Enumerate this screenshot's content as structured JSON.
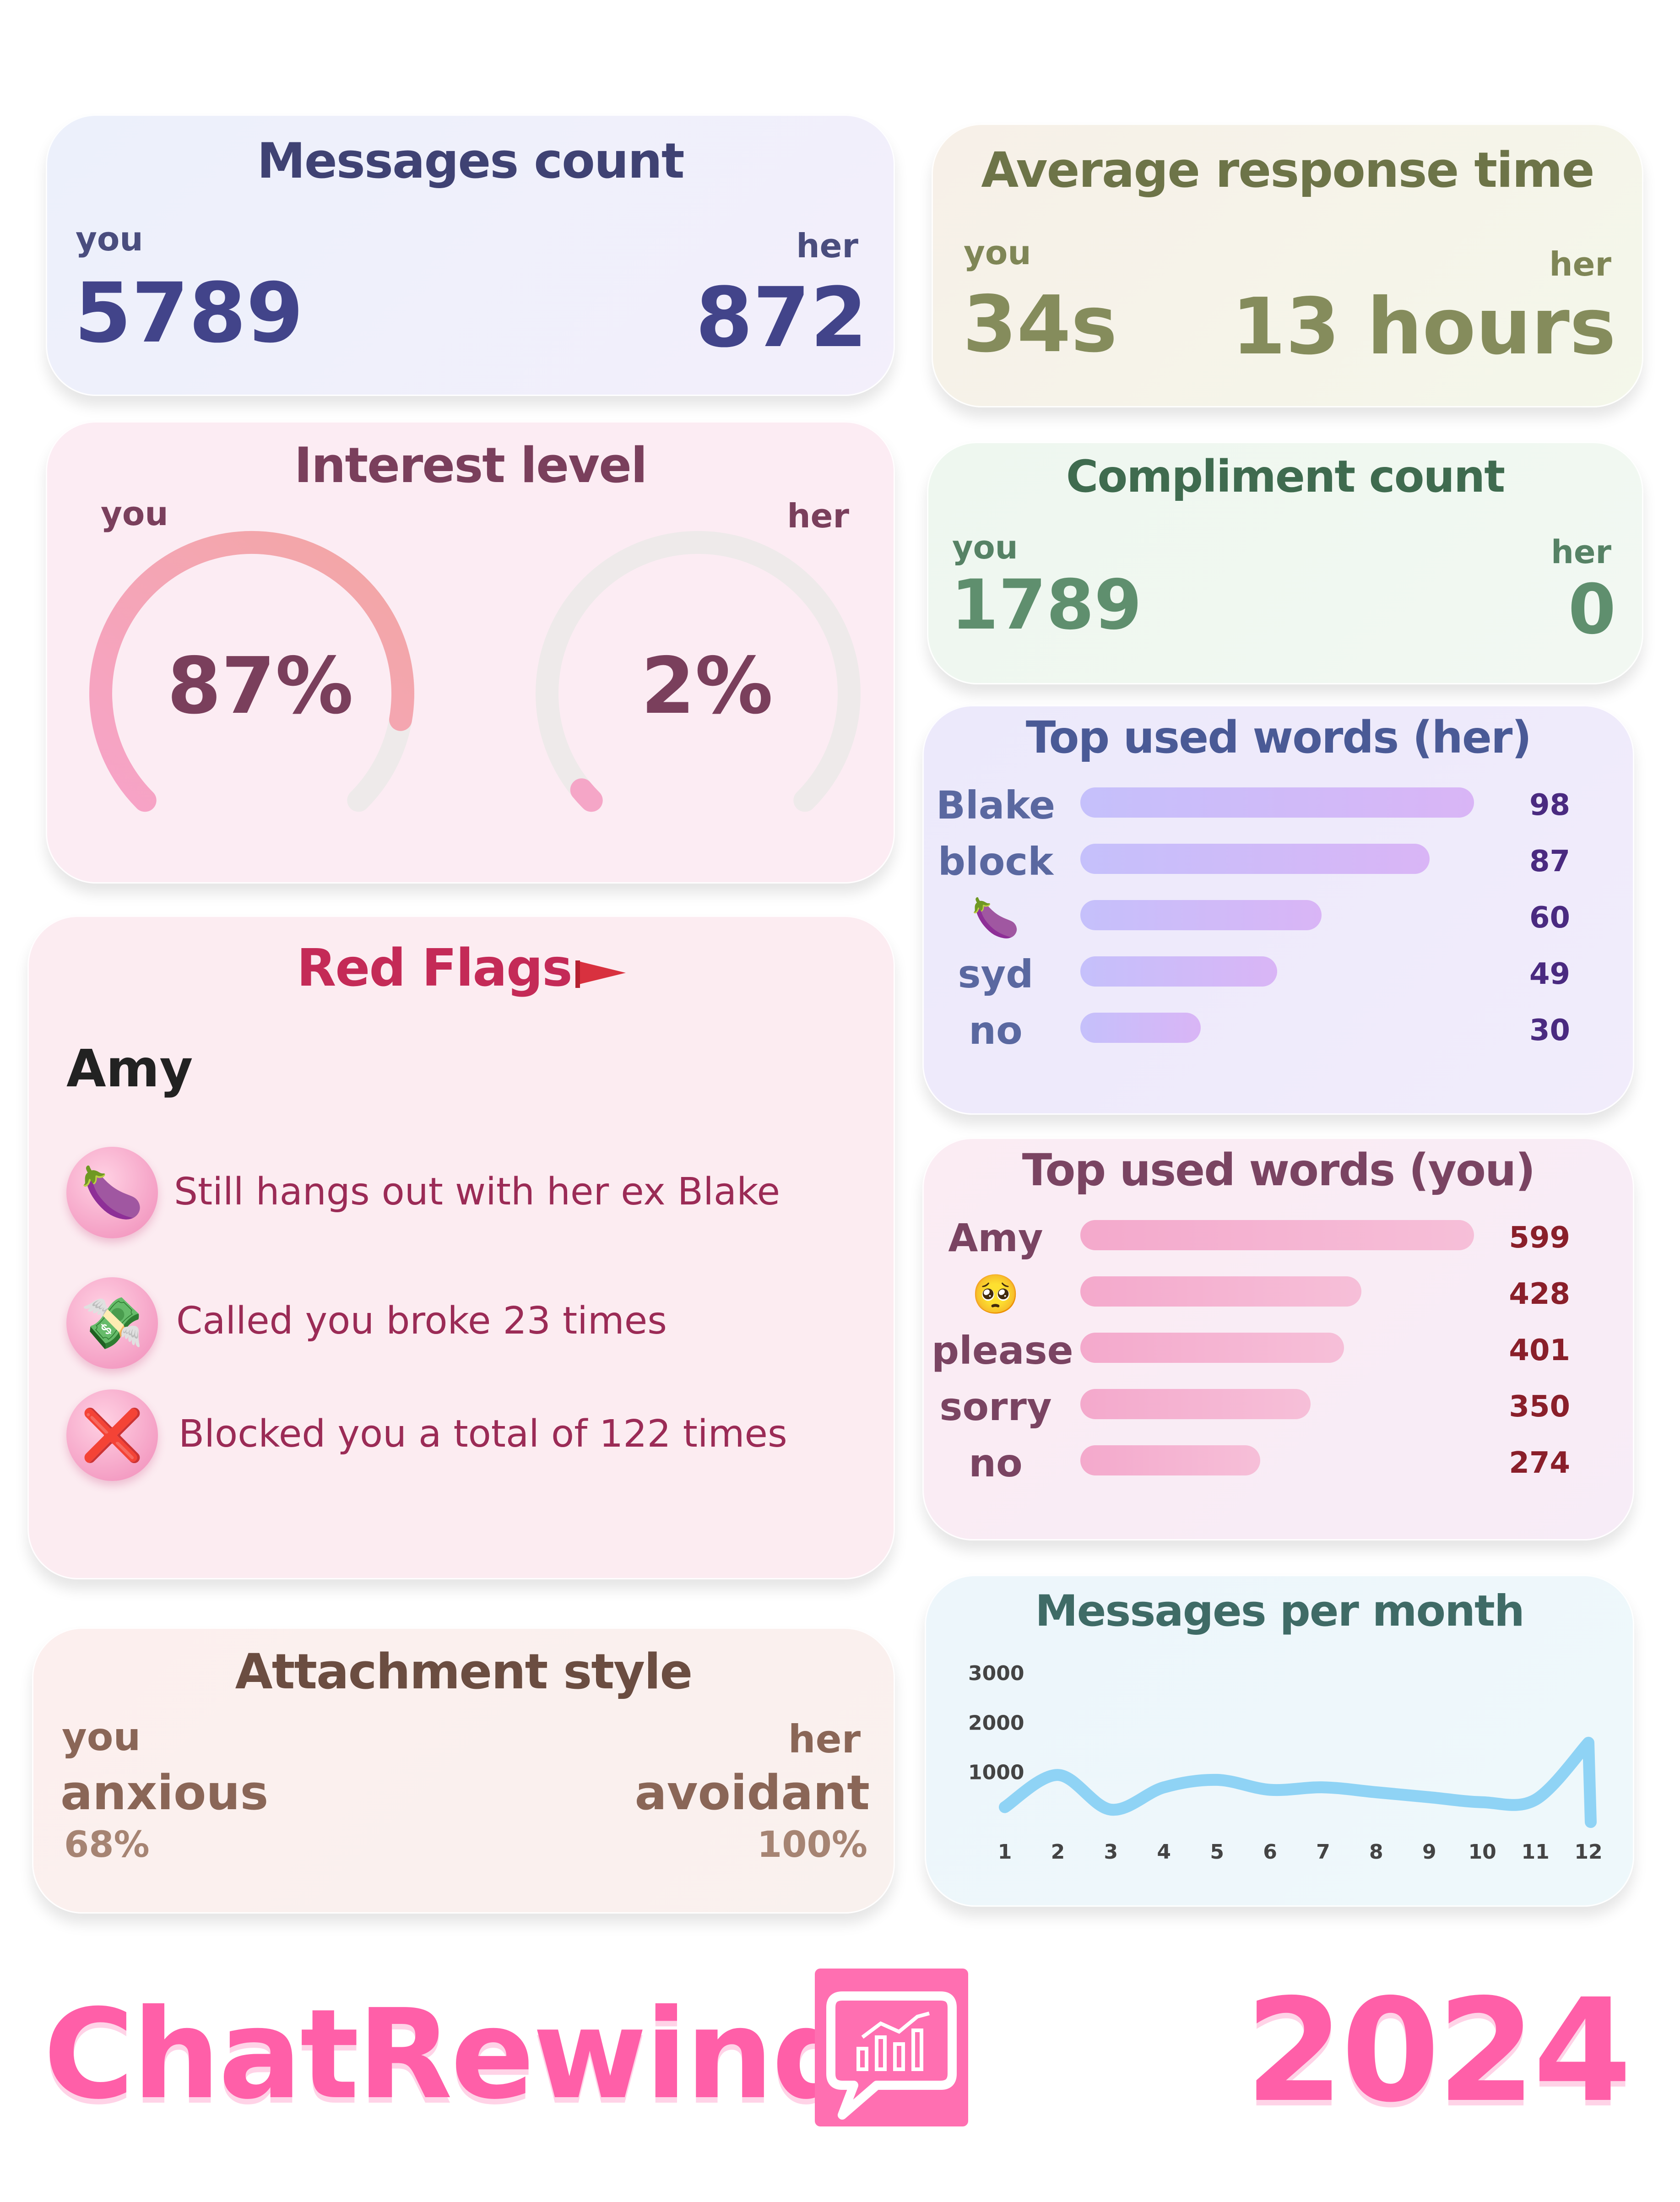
{
  "messages_count": {
    "title": "Messages count",
    "you_label": "you",
    "her_label": "her",
    "you_value": "5789",
    "her_value": "872"
  },
  "response_time": {
    "title": "Average response time",
    "you_label": "you",
    "her_label": "her",
    "you_value": "34s",
    "her_value": "13 hours"
  },
  "interest_level": {
    "title": "Interest level",
    "you_label": "you",
    "her_label": "her",
    "you_value": "87%",
    "her_value": "2%",
    "you_fraction": 0.87,
    "her_fraction": 0.02
  },
  "compliments": {
    "title": "Compliment count",
    "you_label": "you",
    "her_label": "her",
    "you_value": "1789",
    "her_value": "0"
  },
  "red_flags": {
    "title": "Red Flags",
    "name": "Amy",
    "items": [
      {
        "icon": "eggplant-icon",
        "text": "Still hangs out with her ex Blake"
      },
      {
        "icon": "money-icon",
        "text": "Called you broke 23 times"
      },
      {
        "icon": "cross-mark-icon",
        "text": "Blocked you a total of 122 times"
      }
    ]
  },
  "top_words_her": {
    "title": "Top used words (her)",
    "items": [
      {
        "word": "Blake",
        "count": 98
      },
      {
        "word": "block",
        "count": 87
      },
      {
        "word": "🍆",
        "count": 60
      },
      {
        "word": "syd",
        "count": 49
      },
      {
        "word": "no",
        "count": 30
      }
    ]
  },
  "top_words_you": {
    "title": "Top used words (you)",
    "items": [
      {
        "word": "Amy",
        "count": 599
      },
      {
        "word": "🥺",
        "count": 428
      },
      {
        "word": "please",
        "count": 401
      },
      {
        "word": "sorry",
        "count": 350
      },
      {
        "word": "no",
        "count": 274
      }
    ]
  },
  "attachment": {
    "title": "Attachment style",
    "you_label": "you",
    "her_label": "her",
    "you_style": "anxious",
    "her_style": "avoidant",
    "you_pct": "68%",
    "her_pct": "100%"
  },
  "chart_data": {
    "type": "line",
    "title": "Messages per month",
    "x": [
      1,
      2,
      3,
      4,
      5,
      6,
      7,
      8,
      9,
      10,
      11,
      12
    ],
    "series": [
      {
        "values": [
          300,
          950,
          250,
          700,
          850,
          650,
          700,
          600,
          500,
          400,
          450,
          1600
        ]
      }
    ],
    "y_ticks": [
      1000,
      2000,
      3000
    ],
    "ylim": [
      0,
      3000
    ],
    "grid": false
  },
  "footer": {
    "brand": "ChatRewind",
    "year": "2024"
  },
  "colors": {
    "brand_pink": "#ff5fa8",
    "line": "#8fd3f5"
  }
}
